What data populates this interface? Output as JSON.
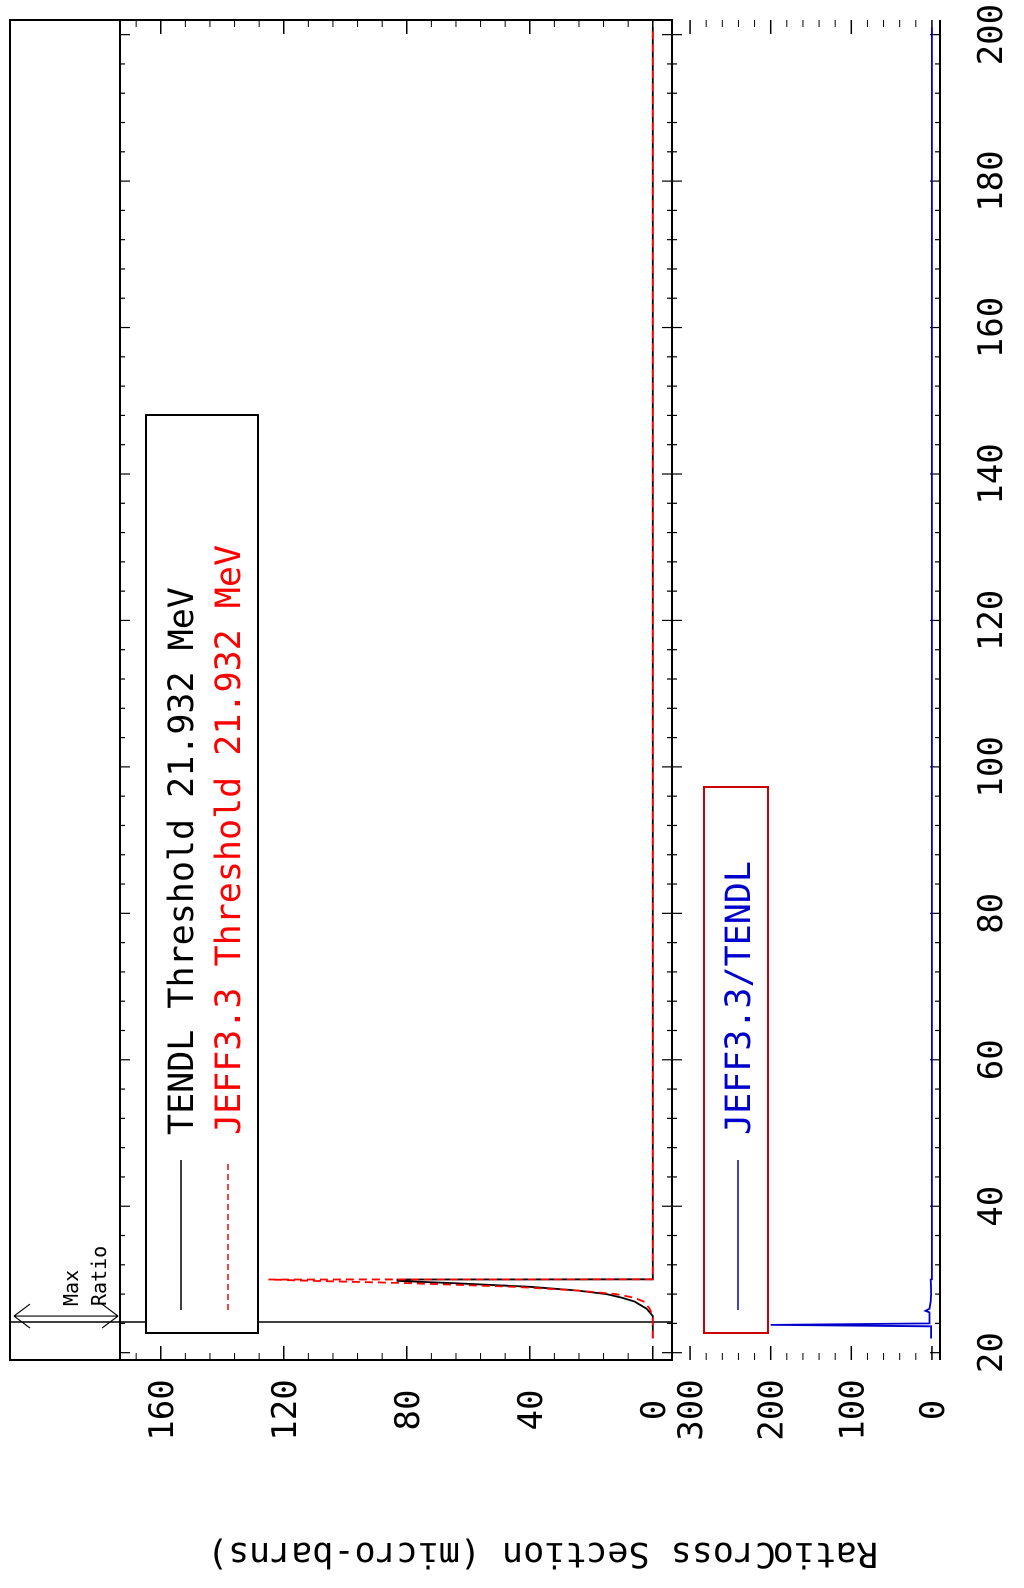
{
  "chart_data": [
    {
      "type": "line",
      "panel": "cross-section",
      "ylabel": "Cross Section (micro-barns)",
      "ylim": [
        -3,
        170
      ],
      "yticks": [
        "0",
        "40",
        "80",
        "120",
        "160"
      ],
      "xlim": [
        19,
        202
      ],
      "xticks": [
        "20",
        "40",
        "60",
        "80",
        "100",
        "120",
        "140",
        "160",
        "180",
        "200"
      ],
      "legend_placement": "top-left (rotated)",
      "series": [
        {
          "name": "TENDL Threshold 21.932 MeV",
          "color": "#000000",
          "dash": "solid",
          "x": [
            21.932,
            25,
            26,
            27,
            27.5,
            28,
            28.5,
            29,
            29.5,
            29.8,
            30,
            30.02,
            35,
            60,
            100,
            150,
            201
          ],
          "y": [
            0,
            0,
            2,
            6,
            10,
            15,
            25,
            40,
            65,
            83,
            83,
            0,
            0,
            0,
            0,
            0,
            0
          ]
        },
        {
          "name": "JEFF3.3 Threshold 21.932 MeV",
          "color": "#ff0000",
          "dash": "dashed",
          "x": [
            21.932,
            25,
            26,
            27,
            27.5,
            28,
            28.5,
            29,
            29.5,
            29.8,
            30,
            30.02,
            35,
            60,
            100,
            150,
            201
          ],
          "y": [
            0,
            0,
            1,
            3,
            6,
            12,
            25,
            45,
            80,
            110,
            125,
            0,
            0,
            0,
            0,
            0,
            0
          ]
        }
      ],
      "annotation": {
        "label_max": "Max",
        "label_ratio": "Ratio",
        "x_start": 19,
        "x_end": 25
      }
    },
    {
      "type": "line",
      "panel": "ratio",
      "ylabel": "Ratio",
      "ylim": [
        -10,
        310
      ],
      "yticks": [
        "0",
        "100",
        "200",
        "300"
      ],
      "xlim": [
        19,
        202
      ],
      "legend_placement": "bottom-left (rotated)",
      "series": [
        {
          "name": "JEFF3.3/TENDL",
          "color": "#0000cc",
          "dash": "solid",
          "x": [
            21.932,
            23.6,
            23.8,
            24.0,
            25.5,
            25.7,
            26,
            27,
            28,
            29,
            30,
            30.02,
            60,
            100,
            150,
            201
          ],
          "y": [
            1,
            1,
            200,
            3,
            3,
            8,
            3,
            1.5,
            1,
            1.2,
            1.5,
            0,
            0,
            0,
            0,
            0
          ]
        }
      ]
    }
  ]
}
